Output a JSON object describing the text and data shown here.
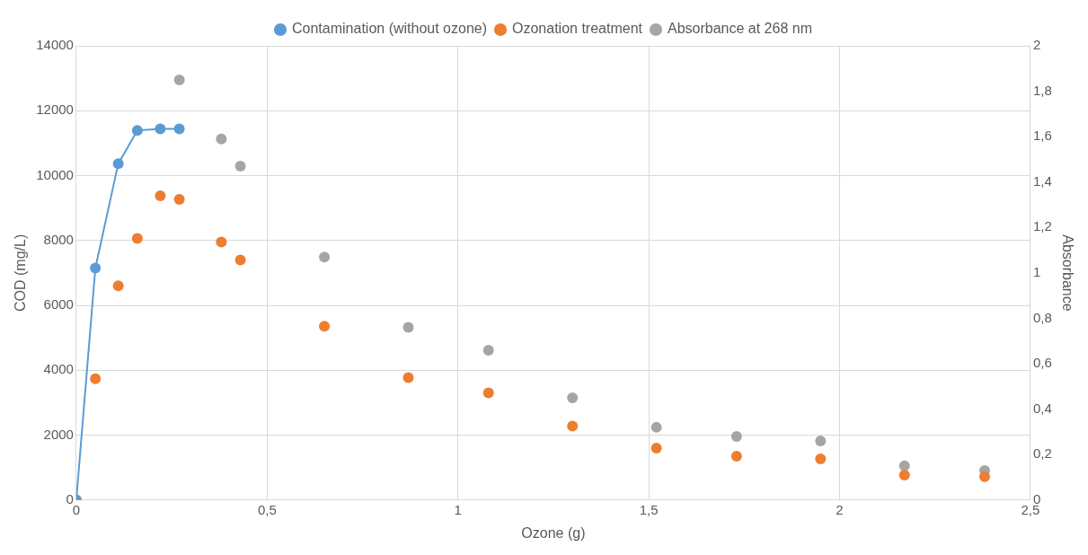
{
  "chart_data": {
    "type": "scatter",
    "xlabel": "Ozone (g)",
    "ylabel": "COD (mg/L)",
    "y2label": "Absorbance",
    "xlim": [
      0,
      2.5
    ],
    "xticks": [
      0,
      {
        "value": 0.5,
        "label": "0,5"
      },
      1,
      {
        "value": 1.5,
        "label": "1,5"
      },
      2,
      {
        "value": 2.5,
        "label": "2,5"
      }
    ],
    "ylim": [
      0,
      14000
    ],
    "yticks": [
      0,
      2000,
      4000,
      6000,
      8000,
      10000,
      12000,
      14000
    ],
    "y2lim": [
      0,
      2
    ],
    "y2ticks": [
      0,
      {
        "value": 0.2,
        "label": "0,2"
      },
      {
        "value": 0.4,
        "label": "0,4"
      },
      {
        "value": 0.6,
        "label": "0,6"
      },
      {
        "value": 0.8,
        "label": "0,8"
      },
      1,
      {
        "value": 1.2,
        "label": "1,2"
      },
      {
        "value": 1.4,
        "label": "1,4"
      },
      {
        "value": 1.6,
        "label": "1,6"
      },
      {
        "value": 1.8,
        "label": "1,8"
      },
      2
    ],
    "grid": true,
    "legend": "top",
    "marker": "circle",
    "series": [
      {
        "name": "Contamination (without ozone)",
        "type": "line",
        "line_style": "solid",
        "color": "#5b9bd5",
        "x": [
          0,
          0.05,
          0.11,
          0.16,
          0.22,
          0.27
        ],
        "values": [
          0,
          7150,
          10370,
          11390,
          11440,
          11440
        ]
      },
      {
        "name": "Ozonation treatment",
        "color": "#ed7d31",
        "x": [
          0,
          0.05,
          0.11,
          0.16,
          0.22,
          0.27,
          0.38,
          0.43,
          0.65,
          0.87,
          1.08,
          1.3,
          1.52,
          1.73,
          1.95,
          2.17,
          2.38
        ],
        "values": [
          0,
          3740,
          6600,
          8060,
          9380,
          9270,
          7950,
          7400,
          5360,
          3770,
          3300,
          2280,
          1600,
          1350,
          1270,
          770,
          720
        ]
      },
      {
        "name": "Absorbance at 268 nm",
        "axis": "y2",
        "color": "#a5a5a5",
        "x": [
          0.27,
          0.38,
          0.43,
          0.65,
          0.87,
          1.08,
          1.3,
          1.52,
          1.73,
          1.95,
          2.17,
          2.38
        ],
        "values": [
          1.85,
          1.59,
          1.47,
          1.07,
          0.76,
          0.66,
          0.45,
          0.32,
          0.28,
          0.26,
          0.15,
          0.13
        ]
      }
    ]
  }
}
